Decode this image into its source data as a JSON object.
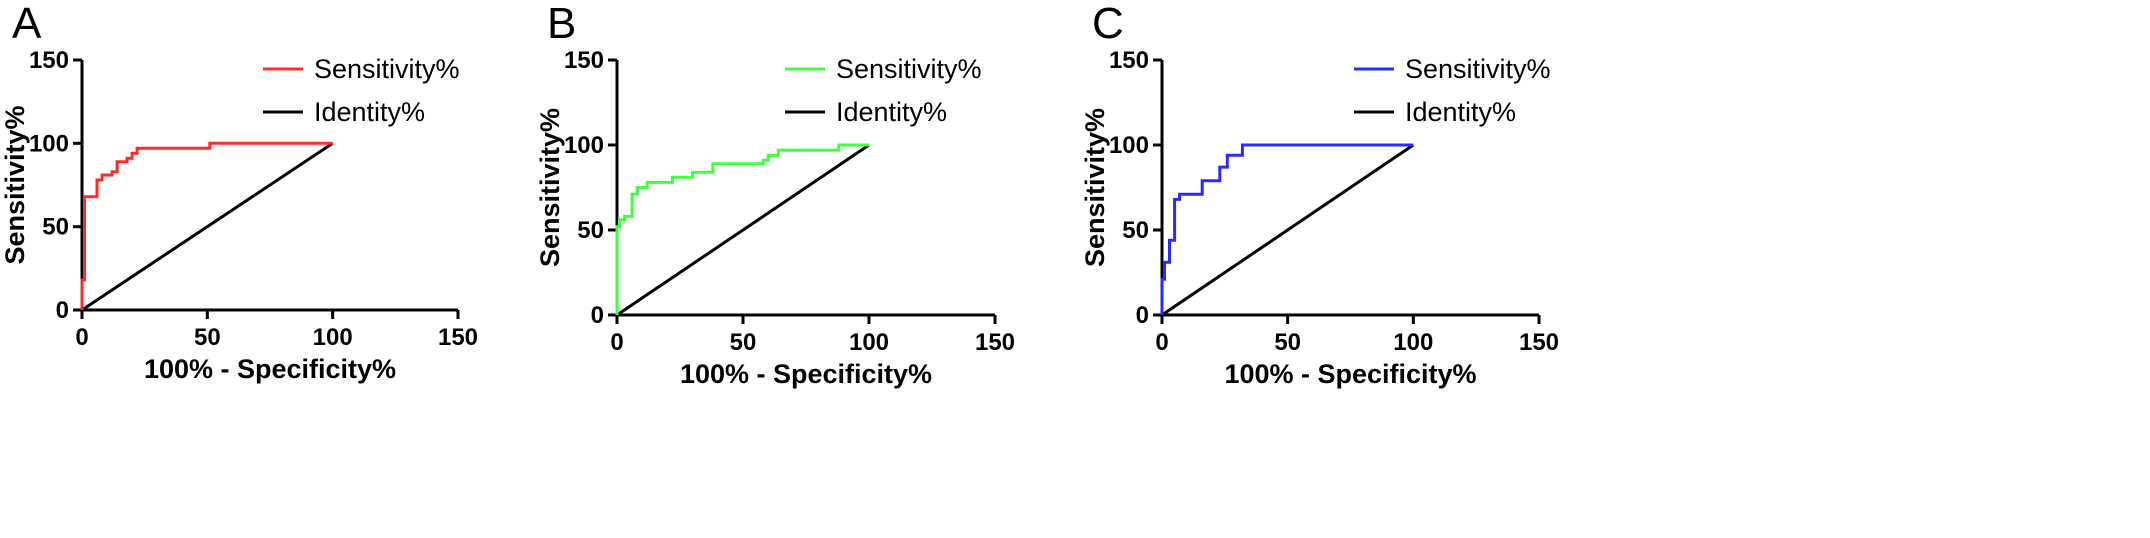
{
  "chart_data": [
    {
      "type": "line",
      "panel_label": "A",
      "xlabel": "100% - Specificity%",
      "ylabel": "Sensitivity%",
      "xlim": [
        0,
        150
      ],
      "ylim": [
        0,
        150
      ],
      "xticks": [
        0,
        50,
        100,
        150
      ],
      "yticks": [
        0,
        50,
        100,
        150
      ],
      "legend_position": "top-right",
      "series": [
        {
          "name": "Sensitivity%",
          "color": "#ff2a2a",
          "x": [
            0,
            0,
            1,
            1,
            2,
            2,
            6,
            6,
            8,
            8,
            12,
            12,
            14,
            14,
            18,
            18,
            20,
            20,
            22,
            22,
            24,
            24,
            51,
            51,
            100
          ],
          "y": [
            0,
            18,
            18,
            68,
            68,
            68,
            68,
            78,
            78,
            81,
            81,
            83,
            83,
            89,
            89,
            91,
            91,
            94,
            94,
            97,
            97,
            97,
            97,
            100,
            100
          ]
        },
        {
          "name": "Identity%",
          "color": "#000000",
          "x": [
            0,
            100
          ],
          "y": [
            0,
            100
          ]
        }
      ]
    },
    {
      "type": "line",
      "panel_label": "B",
      "xlabel": "100% - Specificity%",
      "ylabel": "Sensitivity%",
      "xlim": [
        0,
        150
      ],
      "ylim": [
        0,
        150
      ],
      "xticks": [
        0,
        50,
        100,
        150
      ],
      "yticks": [
        0,
        50,
        100,
        150
      ],
      "legend_position": "top-right",
      "series": [
        {
          "name": "Sensitivity%",
          "color": "#3dff3d",
          "x": [
            0,
            0,
            1,
            1,
            3,
            3,
            6,
            6,
            8,
            8,
            12,
            12,
            22,
            22,
            30,
            30,
            38,
            38,
            58,
            58,
            60,
            60,
            64,
            64,
            88,
            88,
            100
          ],
          "y": [
            0,
            52,
            52,
            56,
            56,
            58,
            58,
            71,
            71,
            75,
            75,
            78,
            78,
            81,
            81,
            84,
            84,
            89,
            89,
            91,
            91,
            94,
            94,
            97,
            97,
            100,
            100
          ]
        },
        {
          "name": "Identity%",
          "color": "#000000",
          "x": [
            0,
            100
          ],
          "y": [
            0,
            100
          ]
        }
      ]
    },
    {
      "type": "line",
      "panel_label": "C",
      "xlabel": "100% - Specificity%",
      "ylabel": "Sensitivity%",
      "xlim": [
        0,
        150
      ],
      "ylim": [
        0,
        150
      ],
      "xticks": [
        0,
        50,
        100,
        150
      ],
      "yticks": [
        0,
        50,
        100,
        150
      ],
      "legend_position": "top-right",
      "series": [
        {
          "name": "Sensitivity%",
          "color": "#2a2aff",
          "x": [
            0,
            0,
            1,
            1,
            3,
            3,
            5,
            5,
            7,
            7,
            10,
            10,
            16,
            16,
            23,
            23,
            26,
            26,
            32,
            32,
            100
          ],
          "y": [
            0,
            21,
            21,
            31,
            31,
            44,
            44,
            68,
            68,
            71,
            71,
            71,
            71,
            79,
            79,
            87,
            87,
            94,
            94,
            100,
            100
          ]
        },
        {
          "name": "Identity%",
          "color": "#000000",
          "x": [
            0,
            100
          ],
          "y": [
            0,
            100
          ]
        }
      ]
    }
  ]
}
